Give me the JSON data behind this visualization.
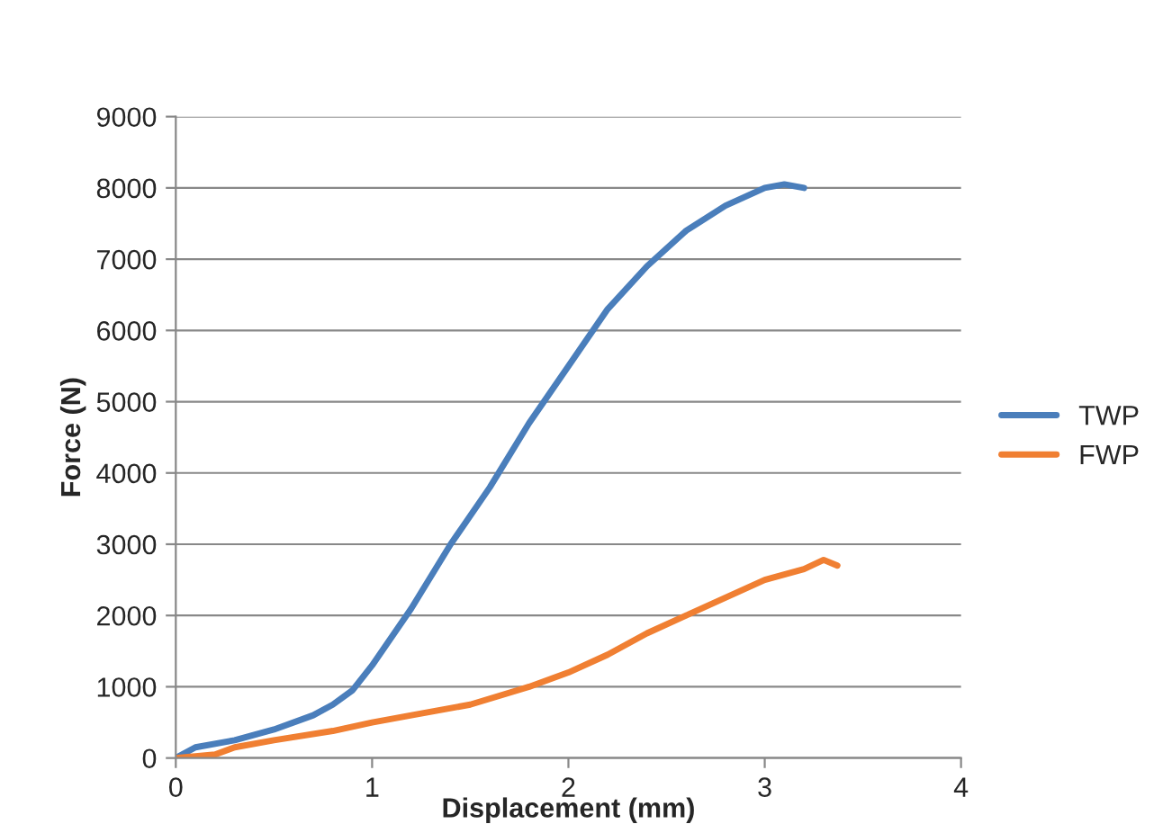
{
  "chart_data": {
    "type": "line",
    "xlabel": "Displacement (mm)",
    "ylabel": "Force (N)",
    "xlim": [
      0,
      4
    ],
    "xticks": [
      0,
      1,
      2,
      3,
      4
    ],
    "ylim": [
      0,
      9000
    ],
    "yticks": [
      0,
      1000,
      2000,
      3000,
      4000,
      5000,
      6000,
      7000,
      8000,
      9000
    ],
    "grid": "y",
    "legend": "right",
    "marker": "none",
    "line_style": "solid",
    "series": [
      {
        "name": "TWP",
        "color": "#4a7ebb",
        "x": [
          0,
          0.1,
          0.3,
          0.5,
          0.7,
          0.8,
          0.9,
          1.0,
          1.2,
          1.4,
          1.6,
          1.8,
          2.0,
          2.2,
          2.4,
          2.6,
          2.8,
          3.0,
          3.1,
          3.2
        ],
        "values": [
          0,
          150,
          250,
          400,
          600,
          750,
          950,
          1300,
          2100,
          3000,
          3800,
          4700,
          5500,
          6300,
          6900,
          7400,
          7750,
          8000,
          8050,
          8000
        ]
      },
      {
        "name": "FWP",
        "color": "#f07f32",
        "x": [
          0,
          0.2,
          0.3,
          0.5,
          0.8,
          1.0,
          1.2,
          1.5,
          1.8,
          2.0,
          2.2,
          2.4,
          2.6,
          2.8,
          3.0,
          3.2,
          3.3,
          3.37
        ],
        "values": [
          0,
          50,
          150,
          250,
          380,
          500,
          600,
          750,
          1000,
          1200,
          1450,
          1750,
          2000,
          2250,
          2500,
          2650,
          2780,
          2700
        ]
      }
    ]
  }
}
